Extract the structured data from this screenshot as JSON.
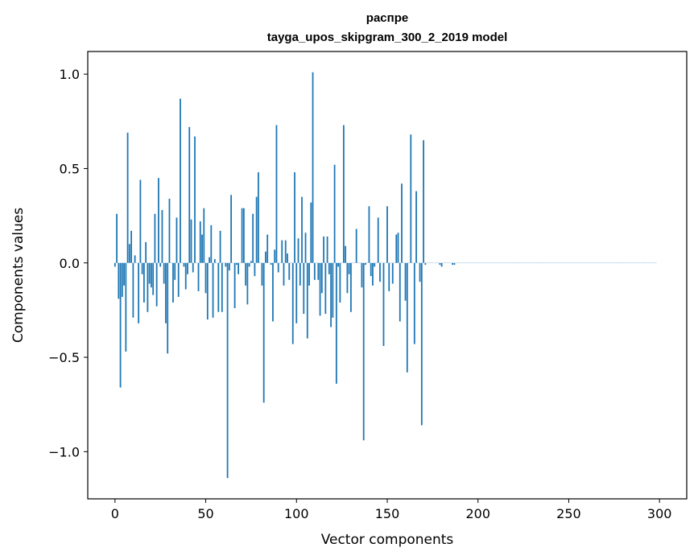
{
  "chart_data": {
    "type": "bar",
    "title_line1": "распре",
    "title_line2": "tayga_upos_skipgram_300_2_2019 model",
    "xlabel": "Vector components",
    "ylabel": "Components values",
    "xlim": [
      -15,
      315
    ],
    "ylim": [
      -1.25,
      1.12
    ],
    "x_ticks": [
      0,
      50,
      100,
      150,
      200,
      250,
      300
    ],
    "x_tick_labels": [
      "0",
      "50",
      "100",
      "150",
      "200",
      "250",
      "300"
    ],
    "y_ticks": [
      -1.0,
      -0.5,
      0.0,
      0.5,
      1.0
    ],
    "y_tick_labels": [
      "−1.0",
      "−0.5",
      "0.0",
      "0.5",
      "1.0"
    ],
    "bar_color": "#1f77b4",
    "values": [
      -0.02,
      0.26,
      -0.19,
      -0.66,
      -0.18,
      -0.12,
      -0.47,
      0.69,
      0.1,
      0.17,
      -0.29,
      0.04,
      0.0,
      -0.32,
      0.44,
      -0.06,
      -0.21,
      0.11,
      -0.26,
      -0.11,
      -0.13,
      -0.17,
      0.26,
      -0.23,
      0.45,
      -0.02,
      0.28,
      -0.11,
      -0.32,
      -0.48,
      0.34,
      0.0,
      -0.21,
      -0.09,
      0.24,
      -0.18,
      0.87,
      0.0,
      -0.02,
      -0.14,
      -0.06,
      0.72,
      0.23,
      -0.05,
      0.67,
      0.0,
      -0.15,
      0.22,
      0.15,
      0.29,
      -0.16,
      -0.3,
      0.03,
      0.2,
      -0.29,
      0.02,
      0.0,
      -0.26,
      0.17,
      -0.26,
      0.0,
      -0.02,
      -1.14,
      -0.04,
      0.36,
      0.0,
      -0.24,
      -0.01,
      -0.06,
      0.0,
      0.29,
      0.29,
      -0.12,
      -0.22,
      -0.02,
      0.01,
      0.26,
      -0.07,
      0.35,
      0.48,
      0.0,
      -0.12,
      -0.74,
      0.06,
      0.15,
      0.0,
      -0.01,
      -0.31,
      0.07,
      0.73,
      -0.05,
      0.0,
      0.12,
      -0.12,
      0.12,
      0.05,
      -0.09,
      0.0,
      -0.43,
      0.48,
      -0.32,
      0.13,
      -0.12,
      0.35,
      -0.27,
      0.16,
      -0.4,
      -0.12,
      0.32,
      1.01,
      -0.09,
      0.0,
      -0.09,
      -0.28,
      -0.16,
      0.14,
      -0.27,
      0.14,
      -0.06,
      -0.34,
      -0.29,
      0.52,
      -0.64,
      -0.02,
      -0.21,
      0.0,
      0.73,
      0.09,
      -0.16,
      -0.06,
      -0.26,
      0.0,
      0.0,
      0.18,
      0.0,
      0.0,
      -0.13,
      -0.94,
      -0.01,
      0.0,
      0.3,
      -0.07,
      -0.12,
      -0.02,
      0.0,
      0.24,
      -0.1,
      0.0,
      -0.44,
      0.0,
      0.3,
      -0.15,
      0.0,
      -0.11,
      0.0,
      0.15,
      0.16,
      -0.31,
      0.42,
      0.0,
      -0.2,
      -0.58,
      0.0,
      0.68,
      0.0,
      -0.43,
      0.38,
      0.0,
      -0.1,
      -0.86,
      0.65,
      -0.01,
      0.0,
      0.0,
      0.0,
      0.0,
      0.0,
      0.0,
      0.0,
      -0.01,
      -0.02,
      0.0,
      0.0,
      0.0,
      0.0,
      0.0,
      -0.01,
      -0.01,
      0.0,
      0.0,
      0.0,
      0.0,
      0.0,
      0.0,
      0.0,
      0.0,
      0.0,
      0.0,
      0.0,
      0.0,
      0.0,
      0.0,
      0.0,
      0.0,
      0.0,
      0.0,
      0.0,
      0.0,
      0.0,
      0.0,
      0.0,
      0.0,
      0.0,
      0.0,
      0.0,
      0.0,
      0.0,
      0.0,
      0.0,
      0.0,
      0.0,
      0.0,
      0.0,
      0.0,
      0.0,
      0.0,
      0.0,
      0.0,
      0.0,
      0.0,
      0.0,
      0.0,
      0.0,
      0.0,
      0.0,
      0.0,
      0.0,
      0.0,
      0.0,
      0.0,
      0.0,
      0.0,
      0.0,
      0.0,
      0.0,
      0.0,
      0.0,
      0.0,
      0.0,
      0.0,
      0.0,
      0.0,
      0.0,
      0.0,
      0.0,
      0.0,
      0.0,
      0.0,
      0.0,
      0.0,
      0.0,
      0.0,
      0.0,
      0.0,
      0.0,
      0.0,
      0.0,
      0.0,
      0.0,
      0.0,
      0.0,
      0.0,
      0.0,
      0.0,
      0.0,
      0.0,
      0.0,
      0.0,
      0.0,
      0.0,
      0.0,
      0.0,
      0.0,
      0.0,
      0.0,
      0.0,
      0.0,
      0.0,
      0.0,
      0.0,
      0.0,
      0.0,
      0.0,
      0.0,
      0.0,
      0.0,
      0.0,
      0.0,
      0.0
    ]
  }
}
